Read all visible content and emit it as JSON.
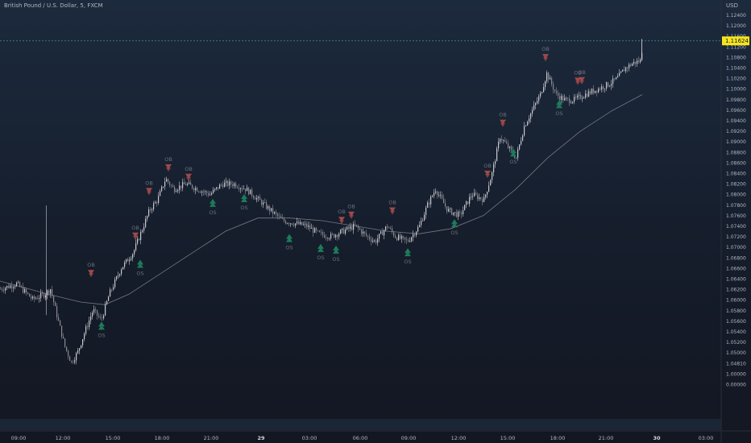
{
  "header": {
    "title": "British Pound / U.S. Dollar, 5, FXCM"
  },
  "colors": {
    "bull_marker": "#1e7a5a",
    "bear_marker": "#a04a4a",
    "price_line": "#d4d4d8",
    "price_badge": "#f5e51e"
  },
  "chart_data": {
    "type": "candlestick",
    "price_axis_unit": "USD",
    "last_price": "1.11624",
    "y_ticks": [
      "1.12400",
      "1.12000",
      "1.11600",
      "1.11200",
      "1.10800",
      "1.10400",
      "1.10200",
      "1.10000",
      "1.09800",
      "1.09600",
      "1.09400",
      "1.09200",
      "1.09000",
      "1.08800",
      "1.08600",
      "1.08400",
      "1.08200",
      "1.08000",
      "1.07800",
      "1.07600",
      "1.07400",
      "1.07200",
      "1.07000",
      "1.06800",
      "1.06600",
      "1.06400",
      "1.06200",
      "1.06000",
      "1.05800",
      "1.05600",
      "1.05400",
      "1.05200",
      "1.05000",
      "1.04810",
      "1.00000",
      "0.00000"
    ],
    "x_ticks": [
      "09:00",
      "12:00",
      "15:00",
      "18:00",
      "21:00",
      "29",
      "03:00",
      "06:00",
      "09:00",
      "12:00",
      "15:00",
      "18:00",
      "21:00",
      "30",
      "03:00"
    ],
    "price_path": [
      [
        0,
        1.069
      ],
      [
        20,
        1.07
      ],
      [
        40,
        1.067
      ],
      [
        55,
        1.068
      ],
      [
        62,
        1.069
      ],
      [
        70,
        1.064
      ],
      [
        80,
        1.058
      ],
      [
        88,
        1.055
      ],
      [
        96,
        1.057
      ],
      [
        105,
        1.061
      ],
      [
        115,
        1.065
      ],
      [
        125,
        1.063
      ],
      [
        135,
        1.068
      ],
      [
        150,
        1.073
      ],
      [
        165,
        1.076
      ],
      [
        175,
        1.08
      ],
      [
        185,
        1.084
      ],
      [
        195,
        1.086
      ],
      [
        205,
        1.09
      ],
      [
        215,
        1.088
      ],
      [
        230,
        1.089
      ],
      [
        245,
        1.088
      ],
      [
        260,
        1.087
      ],
      [
        275,
        1.089
      ],
      [
        290,
        1.089
      ],
      [
        305,
        1.088
      ],
      [
        320,
        1.086
      ],
      [
        335,
        1.084
      ],
      [
        350,
        1.082
      ],
      [
        365,
        1.0815
      ],
      [
        380,
        1.081
      ],
      [
        395,
        1.0795
      ],
      [
        410,
        1.079
      ],
      [
        425,
        1.08
      ],
      [
        440,
        1.081
      ],
      [
        455,
        1.079
      ],
      [
        465,
        1.078
      ],
      [
        480,
        1.081
      ],
      [
        490,
        1.079
      ],
      [
        505,
        1.078
      ],
      [
        520,
        1.081
      ],
      [
        530,
        1.085
      ],
      [
        540,
        1.088
      ],
      [
        555,
        1.084
      ],
      [
        570,
        1.083
      ],
      [
        585,
        1.087
      ],
      [
        600,
        1.086
      ],
      [
        610,
        1.091
      ],
      [
        620,
        1.098
      ],
      [
        630,
        1.096
      ],
      [
        640,
        1.094
      ],
      [
        650,
        1.1
      ],
      [
        660,
        1.103
      ],
      [
        670,
        1.106
      ],
      [
        678,
        1.11
      ],
      [
        690,
        1.106
      ],
      [
        700,
        1.105
      ],
      [
        712,
        1.105
      ],
      [
        725,
        1.106
      ],
      [
        740,
        1.107
      ],
      [
        755,
        1.108
      ],
      [
        765,
        1.109
      ],
      [
        775,
        1.111
      ],
      [
        785,
        1.112
      ],
      [
        795,
        1.1125
      ],
      [
        797,
        1.1162
      ]
    ],
    "moving_average": [
      [
        0,
        1.0705
      ],
      [
        60,
        1.068
      ],
      [
        100,
        1.0665
      ],
      [
        130,
        1.066
      ],
      [
        160,
        1.068
      ],
      [
        200,
        1.072
      ],
      [
        240,
        1.076
      ],
      [
        280,
        1.08
      ],
      [
        320,
        1.0825
      ],
      [
        360,
        1.0825
      ],
      [
        400,
        1.082
      ],
      [
        440,
        1.081
      ],
      [
        480,
        1.08
      ],
      [
        520,
        1.0795
      ],
      [
        560,
        1.0805
      ],
      [
        600,
        1.083
      ],
      [
        640,
        1.088
      ],
      [
        680,
        1.094
      ],
      [
        720,
        1.099
      ],
      [
        760,
        1.103
      ],
      [
        797,
        1.106
      ]
    ],
    "signals": [
      {
        "kind": "OB",
        "x": 113,
        "price": 1.0714
      },
      {
        "kind": "OS",
        "x": 126,
        "price": 1.062
      },
      {
        "kind": "OB",
        "x": 168,
        "price": 1.0785
      },
      {
        "kind": "OS",
        "x": 174,
        "price": 1.0738
      },
      {
        "kind": "OB",
        "x": 185,
        "price": 1.087
      },
      {
        "kind": "OB",
        "x": 209,
        "price": 1.0915
      },
      {
        "kind": "OB",
        "x": 234,
        "price": 1.0897
      },
      {
        "kind": "OS",
        "x": 264,
        "price": 1.0854
      },
      {
        "kind": "OS",
        "x": 303,
        "price": 1.0863
      },
      {
        "kind": "OS",
        "x": 359,
        "price": 1.0787
      },
      {
        "kind": "OS",
        "x": 398,
        "price": 1.0768
      },
      {
        "kind": "OS",
        "x": 417,
        "price": 1.0765
      },
      {
        "kind": "OB",
        "x": 424,
        "price": 1.0815
      },
      {
        "kind": "OB",
        "x": 436,
        "price": 1.0825
      },
      {
        "kind": "OB",
        "x": 487,
        "price": 1.0833
      },
      {
        "kind": "OS",
        "x": 506,
        "price": 1.076
      },
      {
        "kind": "OS",
        "x": 564,
        "price": 1.0815
      },
      {
        "kind": "OB",
        "x": 605,
        "price": 1.0903
      },
      {
        "kind": "OB",
        "x": 624,
        "price": 1.1
      },
      {
        "kind": "OS",
        "x": 637,
        "price": 1.095
      },
      {
        "kind": "OB",
        "x": 677,
        "price": 1.1125
      },
      {
        "kind": "OS",
        "x": 694,
        "price": 1.1042
      },
      {
        "kind": "OB",
        "x": 717,
        "price": 1.108
      },
      {
        "kind": "OB",
        "x": 722,
        "price": 1.1081
      }
    ]
  }
}
